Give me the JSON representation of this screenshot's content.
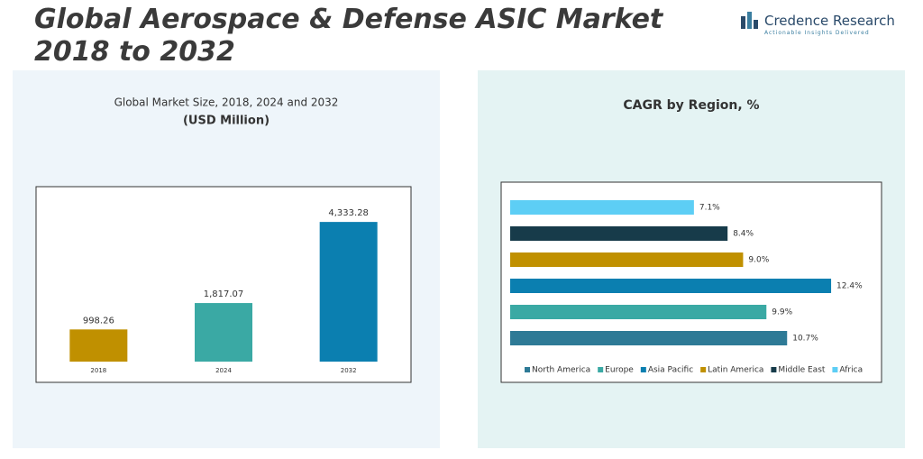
{
  "header": {
    "title": "Global Aerospace & Defense ASIC Market 2018 to 2032",
    "brand": "Credence Research",
    "tagline": "Actionable Insights Delivered"
  },
  "chart_data": [
    {
      "type": "bar",
      "subtitle": "Global Market Size, 2018, 2024 and 2032",
      "title": "(USD Million)",
      "categories": [
        "2018",
        "2024",
        "2032"
      ],
      "values": [
        998.26,
        1817.07,
        4333.28
      ],
      "value_labels": [
        "998.26",
        "1,817.07",
        "4,333.28"
      ],
      "colors": [
        "#c09000",
        "#3aa9a4",
        "#0b7fb0"
      ],
      "ylim": [
        0,
        5400
      ]
    },
    {
      "type": "hbar",
      "title": "CAGR by Region, %",
      "categories": [
        "North America",
        "Europe",
        "Asia Pacific",
        "Latin America",
        "Middle East",
        "Africa"
      ],
      "values": [
        10.7,
        9.9,
        12.4,
        9.0,
        8.4,
        7.1
      ],
      "value_labels": [
        "10.7%",
        "9.9%",
        "12.4%",
        "9.0%",
        "8.4%",
        "7.1%"
      ],
      "colors": [
        "#2e7a96",
        "#3aa9a4",
        "#0b7fb0",
        "#c09000",
        "#173b4a",
        "#5dcef5"
      ],
      "xlim": [
        0,
        14
      ],
      "legend": "bottom"
    }
  ]
}
